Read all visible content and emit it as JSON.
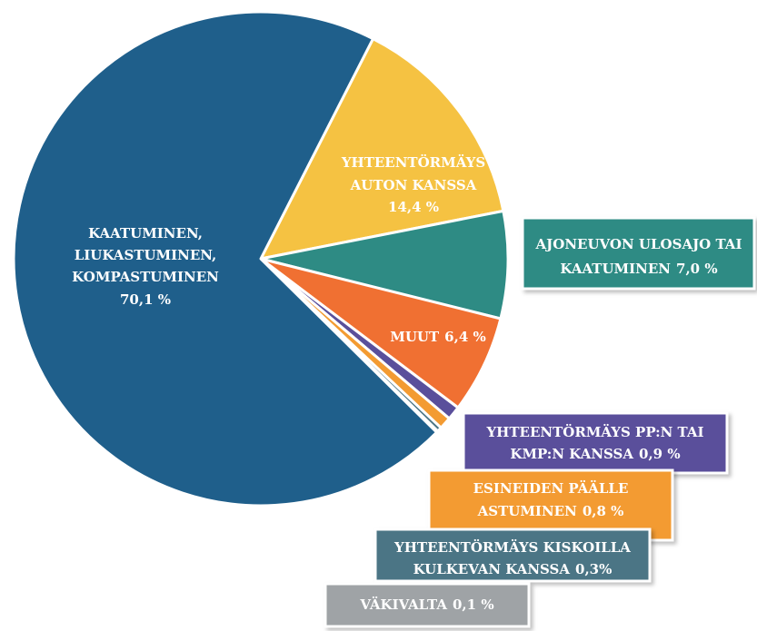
{
  "chart_data": {
    "type": "pie",
    "categories": [
      [
        "YHTEENTÖRMÄYS",
        "AUTON KANSSA"
      ],
      [
        "AJONEUVON ULOSAJO TAI",
        "KAATUMINEN"
      ],
      [
        "MUUT"
      ],
      [
        "YHTEENTÖRMÄYS PP:N TAI",
        "KMP:N KANSSA"
      ],
      [
        "ESINEIDEN PÄÄLLE",
        "ASTUMINEN"
      ],
      [
        "YHTEENTÖRMÄYS KISKOILLA",
        "KULKEVAN KANSSA"
      ],
      [
        "VÄKIVALTA"
      ],
      [
        "KAATUMINEN,",
        "LIUKASTUMINEN,",
        "KOMPASTUMINEN"
      ]
    ],
    "values": [
      14.4,
      7.0,
      6.4,
      0.9,
      0.8,
      0.3,
      0.1,
      70.1
    ],
    "value_labels": [
      "14,4 %",
      "7,0 %",
      "6,4 %",
      "0,9 %",
      "0,8 %",
      "0,3%",
      "0,1 %",
      "70,1 %"
    ],
    "colors": [
      "#f5c242",
      "#2e8b84",
      "#f07032",
      "#5a4f9b",
      "#f39b32",
      "#4b7585",
      "#9fa3a6",
      "#1f5f8b"
    ]
  }
}
